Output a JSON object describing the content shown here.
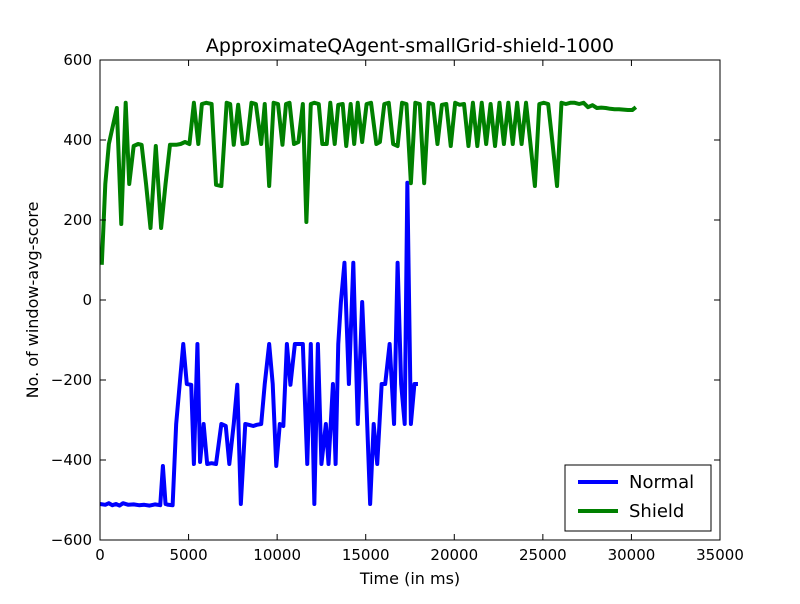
{
  "chart_data": {
    "type": "line",
    "title": "ApproximateQAgent-smallGrid-shield-1000",
    "xlabel": "Time (in ms)",
    "ylabel": "No. of window-avg-score",
    "xlim": [
      0,
      35000
    ],
    "ylim": [
      -600,
      600
    ],
    "xticks": [
      0,
      5000,
      10000,
      15000,
      20000,
      25000,
      30000,
      35000
    ],
    "yticks": [
      -600,
      -400,
      -200,
      0,
      200,
      400,
      600
    ],
    "grid": false,
    "legend_position": "lower-right",
    "series": [
      {
        "name": "Normal",
        "color": "#0000ff",
        "x": [
          0,
          300,
          500,
          700,
          900,
          1100,
          1300,
          1600,
          1900,
          2200,
          2500,
          2800,
          3100,
          3400,
          3550,
          3700,
          3850,
          4100,
          4300,
          4500,
          4700,
          4900,
          5150,
          5300,
          5500,
          5650,
          5850,
          6050,
          6300,
          6550,
          6850,
          7100,
          7300,
          7550,
          7750,
          7950,
          8200,
          8400,
          8650,
          8850,
          9100,
          9300,
          9550,
          9750,
          9950,
          10150,
          10350,
          10550,
          10750,
          11000,
          11200,
          11450,
          11700,
          11900,
          12100,
          12300,
          12500,
          12750,
          12900,
          13150,
          13300,
          13450,
          13600,
          13800,
          14050,
          14300,
          14550,
          14800,
          15000,
          15250,
          15450,
          15650,
          15900,
          16100,
          16350,
          16600,
          16800,
          17000,
          17200,
          17350,
          17550,
          17750,
          17950
        ],
        "y": [
          -510,
          -512,
          -508,
          -513,
          -510,
          -514,
          -508,
          -512,
          -511,
          -513,
          -512,
          -514,
          -511,
          -513,
          -415,
          -510,
          -512,
          -513,
          -310,
          -210,
          -110,
          -210,
          -212,
          -410,
          -110,
          -405,
          -310,
          -410,
          -408,
          -410,
          -310,
          -315,
          -410,
          -310,
          -212,
          -510,
          -310,
          -312,
          -315,
          -312,
          -310,
          -210,
          -110,
          -210,
          -415,
          -310,
          -315,
          -110,
          -212,
          -110,
          -110,
          -110,
          -410,
          -110,
          -510,
          -110,
          -410,
          -310,
          -410,
          -210,
          -410,
          -110,
          -5,
          93,
          -210,
          93,
          -310,
          -5,
          -210,
          -510,
          -310,
          -410,
          -210,
          -210,
          -110,
          -310,
          93,
          -210,
          -310,
          293,
          -310,
          -210,
          -210
        ]
      },
      {
        "name": "Shield",
        "color": "#008000",
        "x": [
          100,
          300,
          500,
          700,
          950,
          1200,
          1450,
          1650,
          1900,
          2150,
          2350,
          2600,
          2850,
          3150,
          3450,
          3700,
          3950,
          4300,
          4550,
          4800,
          5050,
          5300,
          5550,
          5750,
          6000,
          6300,
          6550,
          6850,
          7150,
          7350,
          7550,
          7800,
          8050,
          8300,
          8550,
          8800,
          9100,
          9300,
          9550,
          9800,
          10050,
          10300,
          10500,
          10700,
          10950,
          11200,
          11450,
          11650,
          11900,
          12100,
          12350,
          12550,
          12800,
          13000,
          13250,
          13450,
          13700,
          13900,
          14150,
          14350,
          14550,
          14800,
          15050,
          15300,
          15600,
          15800,
          16050,
          16300,
          16550,
          16800,
          17050,
          17300,
          17550,
          17800,
          18050,
          18300,
          18550,
          18800,
          19050,
          19300,
          19550,
          19800,
          20050,
          20300,
          20550,
          20800,
          21050,
          21300,
          21550,
          21800,
          22050,
          22300,
          22550,
          22800,
          23050,
          23300,
          23550,
          23800,
          24050,
          24300,
          24550,
          24800,
          25050,
          25300,
          25550,
          25800,
          26050,
          26300,
          26550,
          26800,
          27050,
          27300,
          27550,
          27800,
          28050,
          28300,
          28550,
          28800,
          29050,
          29300,
          29550,
          29800,
          30050,
          30250
        ],
        "y": [
          88,
          290,
          390,
          430,
          480,
          190,
          493,
          290,
          385,
          390,
          388,
          290,
          180,
          385,
          180,
          290,
          388,
          388,
          390,
          395,
          390,
          493,
          390,
          490,
          493,
          490,
          288,
          285,
          493,
          490,
          388,
          488,
          390,
          392,
          493,
          490,
          390,
          490,
          285,
          493,
          490,
          388,
          490,
          493,
          390,
          395,
          490,
          195,
          490,
          493,
          490,
          390,
          390,
          493,
          390,
          488,
          490,
          385,
          490,
          390,
          493,
          395,
          490,
          493,
          390,
          395,
          490,
          493,
          390,
          385,
          493,
          490,
          292,
          493,
          490,
          292,
          493,
          490,
          390,
          488,
          490,
          385,
          493,
          488,
          490,
          385,
          493,
          385,
          493,
          390,
          490,
          385,
          493,
          390,
          493,
          390,
          493,
          390,
          493,
          390,
          285,
          490,
          493,
          490,
          390,
          285,
          493,
          490,
          493,
          493,
          490,
          493,
          482,
          487,
          480,
          481,
          480,
          478,
          477,
          477,
          476,
          475,
          475,
          482
        ]
      }
    ]
  }
}
